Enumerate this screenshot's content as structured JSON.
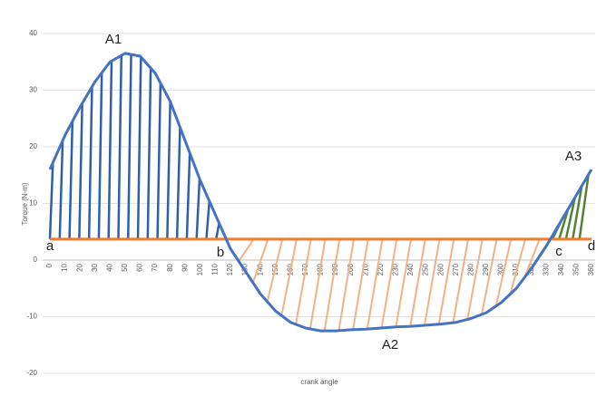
{
  "chart_data": {
    "type": "line",
    "y_label": "Torque (N-m)",
    "x_label": "crank angle",
    "x": [
      0,
      10,
      20,
      30,
      40,
      50,
      60,
      70,
      80,
      90,
      100,
      110,
      120,
      130,
      140,
      150,
      160,
      170,
      180,
      190,
      200,
      210,
      220,
      230,
      240,
      250,
      260,
      270,
      280,
      290,
      300,
      310,
      320,
      330,
      340,
      350,
      360
    ],
    "series": [
      {
        "color": "#4472c4",
        "values": [
          16,
          22,
          27,
          31.5,
          35,
          36.5,
          36,
          33,
          28,
          21,
          14,
          8,
          2,
          -2,
          -6,
          -9,
          -11,
          -12,
          -12.5,
          -12.5,
          -12.3,
          -12.2,
          -12,
          -11.8,
          -11.7,
          -11.5,
          -11.3,
          -11,
          -10.3,
          -9.3,
          -7.5,
          -5,
          -1.5,
          2.5,
          7,
          11.5,
          16
        ]
      }
    ],
    "reference_line": {
      "value": 3.7,
      "color": "#ed7d31"
    },
    "hatch_colors": [
      "#2e5fa8",
      "#f4b183",
      "#548235"
    ],
    "xlim": [
      0,
      360
    ],
    "xticks": [
      0,
      10,
      20,
      30,
      40,
      50,
      60,
      70,
      80,
      90,
      100,
      110,
      120,
      130,
      140,
      150,
      160,
      170,
      180,
      190,
      200,
      210,
      220,
      230,
      240,
      250,
      260,
      270,
      280,
      290,
      300,
      310,
      320,
      330,
      340,
      350,
      360
    ],
    "ylim": [
      -20,
      40
    ],
    "yticks": [
      -20,
      -10,
      0,
      10,
      20,
      30,
      40
    ],
    "grid": true,
    "annotations": [
      "A1",
      "A2",
      "A3",
      "a",
      "b",
      "c",
      "d"
    ]
  }
}
